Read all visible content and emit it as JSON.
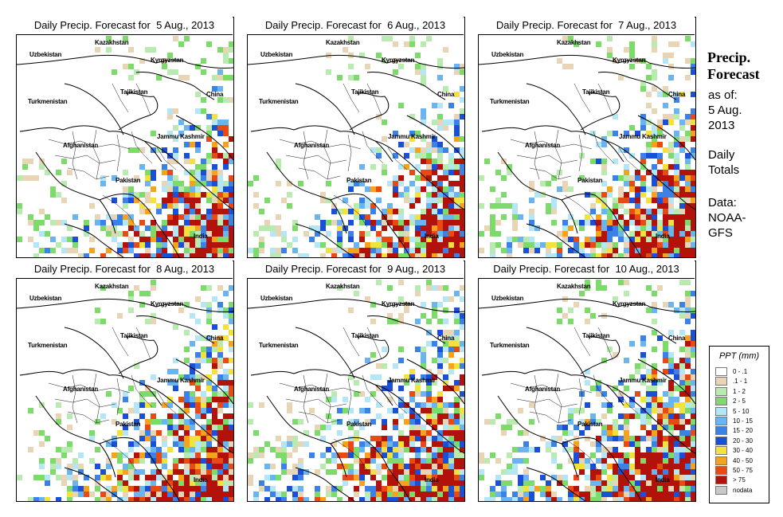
{
  "panels": [
    {
      "title": "Daily Precip. Forecast for  5 Aug., 2013"
    },
    {
      "title": "Daily Precip. Forecast for  6 Aug., 2013"
    },
    {
      "title": "Daily Precip. Forecast for  7 Aug., 2013"
    },
    {
      "title": "Daily Precip. Forecast for  8 Aug., 2013"
    },
    {
      "title": "Daily Precip. Forecast for  9 Aug., 2013"
    },
    {
      "title": "Daily Precip. Forecast for  10 Aug., 2013"
    }
  ],
  "countries": {
    "kazakhstan": "Kazakhstan",
    "uzbekistan": "Uzbekistan",
    "kyrgyzstan": "Kyrgyzstan",
    "tajikistan": "Tajikistan",
    "turkmenistan": "Turkmenistan",
    "china": "China",
    "afghanistan": "Afghanistan",
    "jammu_kashmir": "Jammu Kashmir",
    "pakistan": "Pakistan",
    "india": "India"
  },
  "side": {
    "title_line1": "Precip.",
    "title_line2": "Forecast",
    "asof_line1": "as of:",
    "asof_line2": "5 Aug.",
    "asof_line3": "2013",
    "daily_line1": "Daily",
    "daily_line2": "Totals",
    "data_line1": "Data:",
    "data_line2": "NOAA-",
    "data_line3": "GFS"
  },
  "legend": {
    "title": "PPT (mm)",
    "items": [
      {
        "label": "0 - .1",
        "color": "#ffffff"
      },
      {
        "label": ".1 - 1",
        "color": "#e8d5b5"
      },
      {
        "label": "1 - 2",
        "color": "#b9eab0"
      },
      {
        "label": "2 - 5",
        "color": "#7ddb6c"
      },
      {
        "label": "5 - 10",
        "color": "#b4e6f5"
      },
      {
        "label": "10 - 15",
        "color": "#6ab4ef"
      },
      {
        "label": "15 - 20",
        "color": "#3c82e6"
      },
      {
        "label": "20 - 30",
        "color": "#1a4fd8"
      },
      {
        "label": "30 - 40",
        "color": "#f4e23c"
      },
      {
        "label": "40 - 50",
        "color": "#f6a21c"
      },
      {
        "label": "50 - 75",
        "color": "#e84a14"
      },
      {
        "label": "> 75",
        "color": "#b2120a"
      },
      {
        "label": "nodata",
        "color": "#c8c8c8"
      }
    ]
  },
  "colors": {
    "border": "#000000",
    "background": "#ffffff"
  }
}
